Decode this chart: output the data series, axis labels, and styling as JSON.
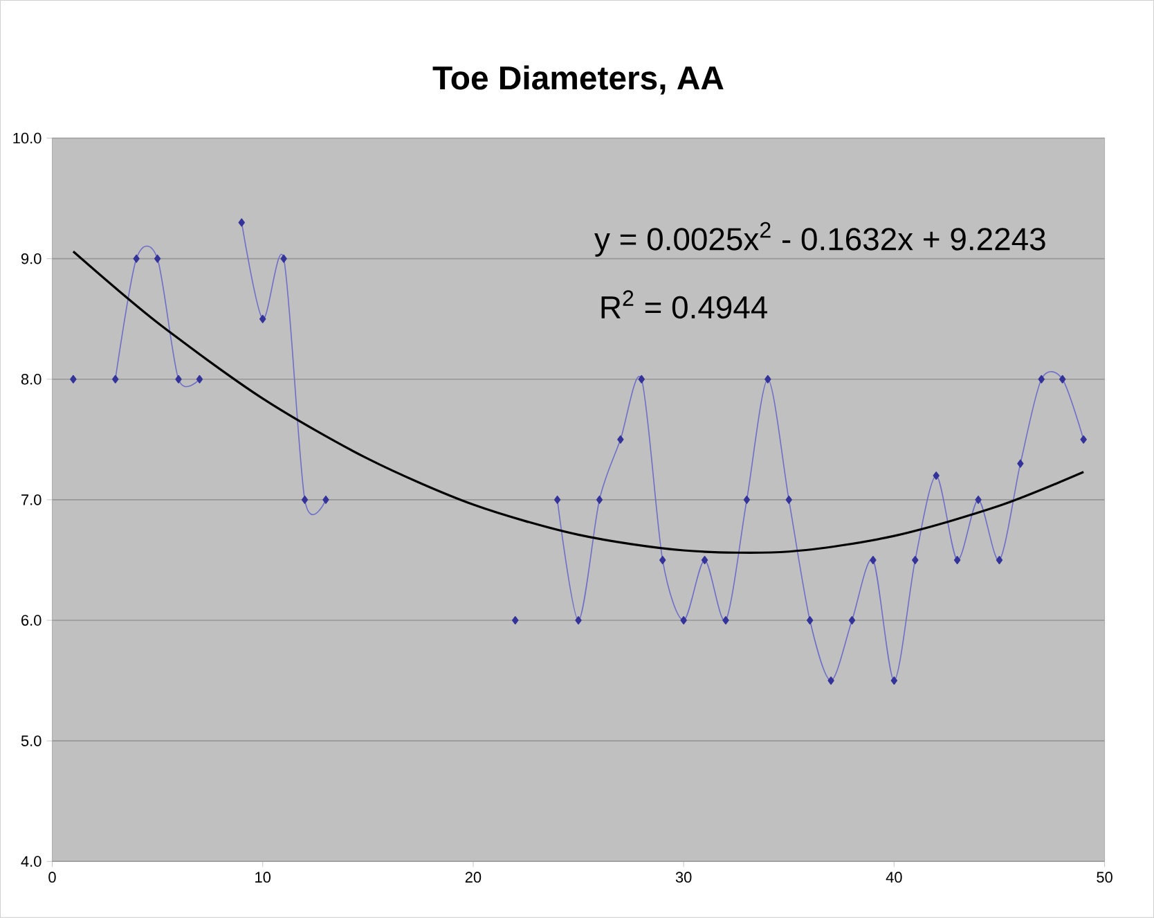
{
  "chart_data": {
    "type": "line",
    "title": "Toe Diameters, AA",
    "x": [
      1,
      2,
      3,
      4,
      5,
      6,
      7,
      8,
      9,
      10,
      11,
      12,
      13,
      14,
      15,
      16,
      17,
      18,
      19,
      20,
      21,
      22,
      23,
      24,
      25,
      26,
      27,
      28,
      29,
      30,
      31,
      32,
      33,
      34,
      35,
      36,
      37,
      38,
      39,
      40,
      41,
      42,
      43,
      44,
      45,
      46,
      47,
      48,
      49
    ],
    "series": [
      {
        "color": "#333399",
        "marker": "diamond",
        "values": [
          8,
          null,
          8,
          9,
          9,
          8,
          8,
          null,
          9.3,
          8.5,
          9,
          7,
          7,
          null,
          null,
          null,
          null,
          null,
          null,
          null,
          null,
          6,
          null,
          7,
          6,
          7,
          7.5,
          8,
          6.5,
          6,
          6.5,
          6,
          7,
          8,
          7,
          6,
          5.5,
          6,
          6.5,
          5.5,
          6.5,
          7.2,
          6.5,
          7,
          6.5,
          7.3,
          8,
          8,
          7.5
        ]
      },
      {
        "type": "line",
        "color": "#000000",
        "marker": "none",
        "x": [
          1,
          5,
          10,
          15,
          20,
          25,
          30,
          35,
          40,
          45,
          49
        ],
        "values": [
          9.06,
          8.47,
          7.84,
          7.34,
          6.96,
          6.71,
          6.58,
          6.57,
          6.7,
          6.95,
          7.23
        ]
      }
    ],
    "annotations": [
      "y = 0.0025x$^{2}$ - 0.1632x + 9.2243",
      "R$^{2}$ = 0.4944"
    ],
    "xlim": [
      0,
      50
    ],
    "xticks": [
      0,
      10,
      20,
      30,
      40,
      50
    ],
    "ylim": [
      4,
      10
    ],
    "yticks": [
      {
        "value": 4,
        "label": "4.0"
      },
      {
        "value": 5,
        "label": "5.0"
      },
      {
        "value": 6,
        "label": "6.0"
      },
      {
        "value": 7,
        "label": "7.0"
      },
      {
        "value": 8,
        "label": "8.0"
      },
      {
        "value": 9,
        "label": "9.0"
      },
      {
        "value": 10,
        "label": "10.0"
      }
    ],
    "grid": "y"
  }
}
